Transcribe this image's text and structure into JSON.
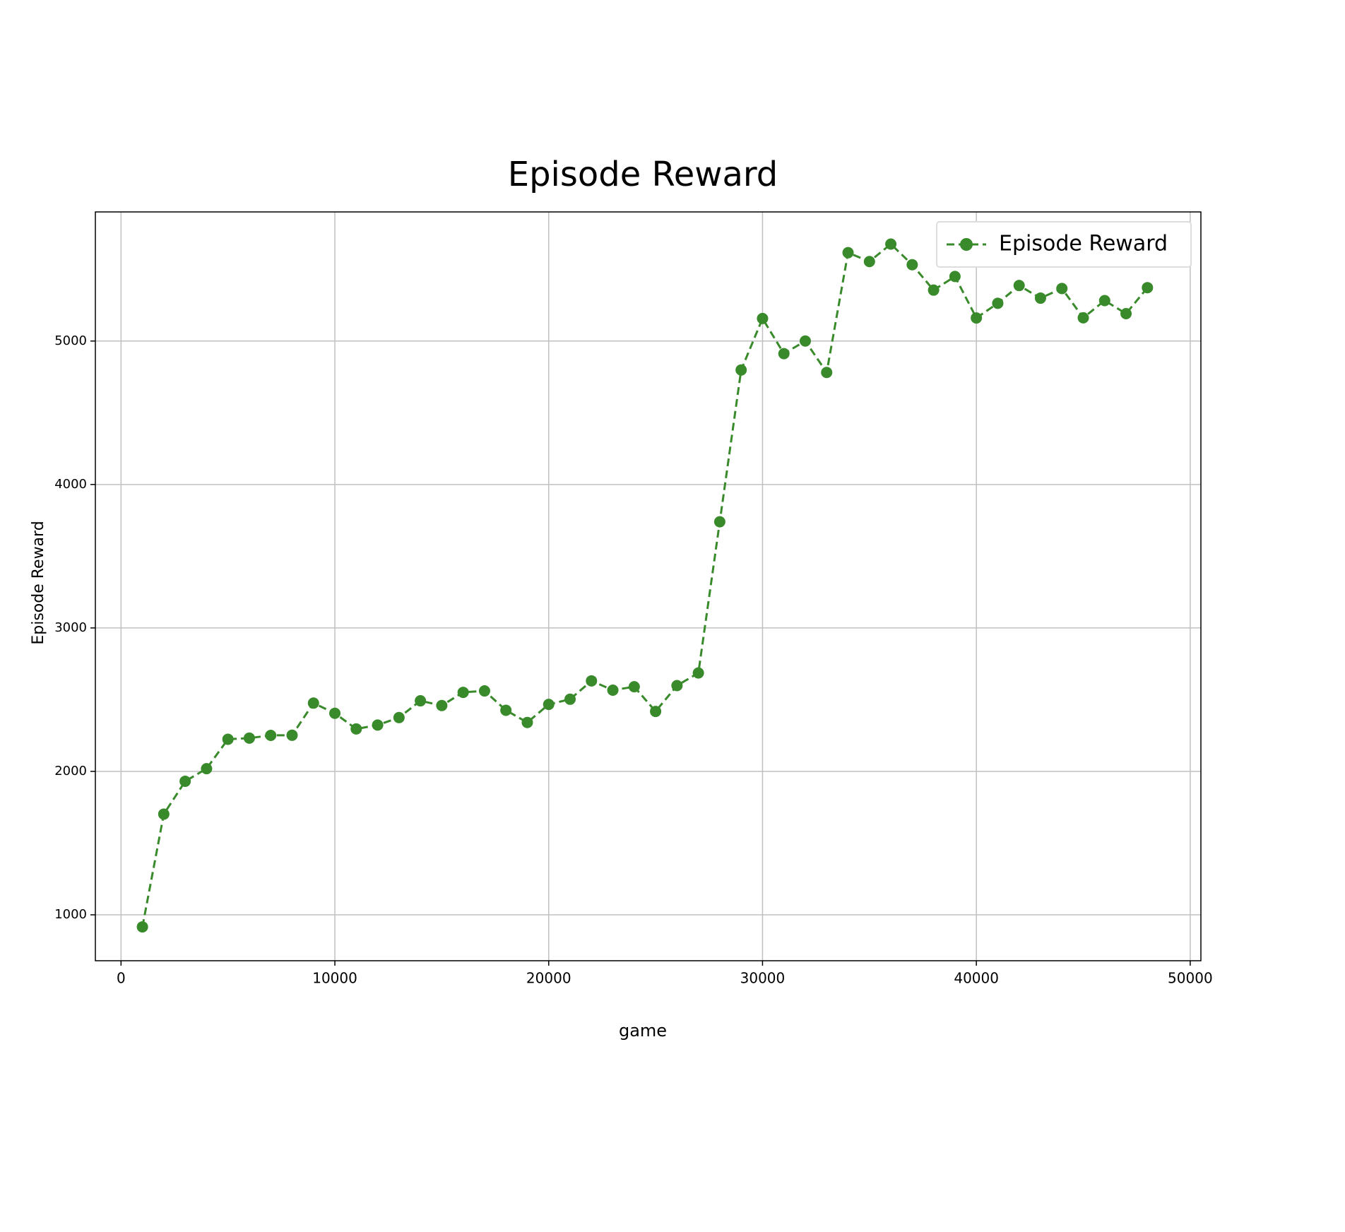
{
  "chart_data": {
    "type": "line",
    "title": "Episode Reward",
    "x_label": "game",
    "y_label": "Episode Reward",
    "x": [
      1000,
      2000,
      3000,
      4000,
      5000,
      6000,
      7000,
      8000,
      9000,
      10000,
      11000,
      12000,
      13000,
      14000,
      15000,
      16000,
      17000,
      18000,
      19000,
      20000,
      21000,
      22000,
      23000,
      24000,
      25000,
      26000,
      27000,
      28000,
      29000,
      30000,
      31000,
      32000,
      33000,
      34000,
      35000,
      36000,
      37000,
      38000,
      39000,
      40000,
      41000,
      42000,
      43000,
      44000,
      45000,
      46000,
      47000,
      48000
    ],
    "series": [
      {
        "name": "Episode Reward",
        "color": "#388a2a",
        "values": [
          916,
          1702,
          1931,
          2019,
          2224,
          2232,
          2251,
          2252,
          2476,
          2405,
          2296,
          2323,
          2375,
          2492,
          2459,
          2551,
          2561,
          2426,
          2341,
          2467,
          2503,
          2631,
          2566,
          2590,
          2418,
          2598,
          2686,
          3740,
          4798,
          5157,
          4912,
          5000,
          4781,
          5616,
          5554,
          5676,
          5532,
          5355,
          5450,
          5161,
          5263,
          5387,
          5299,
          5366,
          5162,
          5282,
          5191,
          5372
        ]
      }
    ],
    "xlim": [
      -1200,
      50500
    ],
    "ylim": [
      680,
      5900
    ],
    "xticks": [
      0,
      10000,
      20000,
      30000,
      40000,
      50000
    ],
    "yticks": [
      1000,
      2000,
      3000,
      4000,
      5000
    ],
    "grid": true,
    "legend": "upper right"
  }
}
